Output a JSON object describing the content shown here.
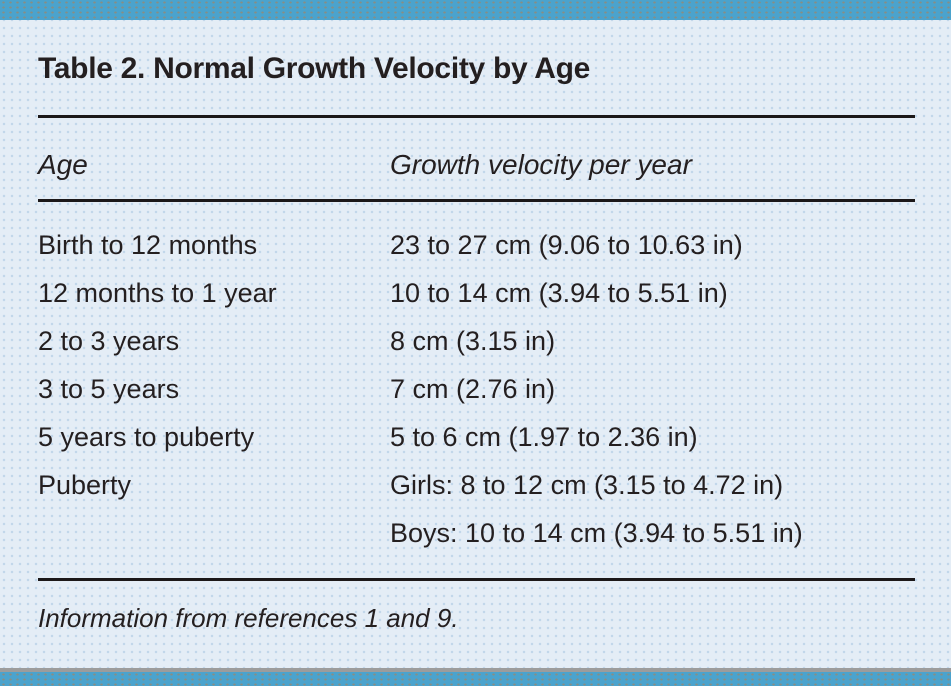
{
  "table": {
    "title": "Table 2. Normal Growth Velocity by Age",
    "columns": {
      "age": "Age",
      "velocity": "Growth velocity per year"
    },
    "rows": [
      {
        "age": "Birth to 12 months",
        "velocity": [
          "23 to 27 cm (9.06 to 10.63 in)"
        ]
      },
      {
        "age": "12 months to 1 year",
        "velocity": [
          "10 to 14 cm (3.94 to 5.51 in)"
        ]
      },
      {
        "age": "2 to 3 years",
        "velocity": [
          "8 cm (3.15 in)"
        ]
      },
      {
        "age": "3 to 5 years",
        "velocity": [
          "7 cm (2.76 in)"
        ]
      },
      {
        "age": "5 years to puberty",
        "velocity": [
          "5 to 6 cm (1.97 to 2.36 in)"
        ]
      },
      {
        "age": "Puberty",
        "velocity": [
          "Girls: 8 to 12 cm (3.15 to 4.72 in)",
          "Boys: 10 to 14 cm (3.94 to 5.51 in)"
        ]
      }
    ],
    "footnote": "Information from references 1 and 9."
  },
  "colors": {
    "accent_bar": "#4ba3cd",
    "background": "#e4edf6",
    "rule": "#1c1819",
    "text": "#241f20",
    "bottom_gray_line": "#9c9c9c"
  }
}
